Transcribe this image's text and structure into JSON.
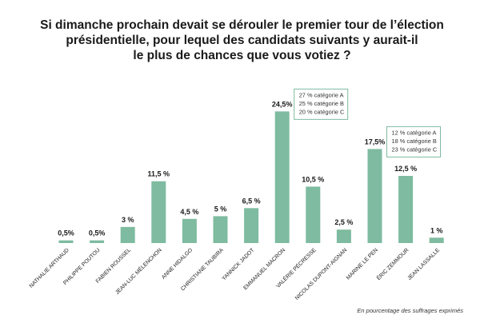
{
  "title_lines": [
    "Si dimanche prochain devait se dérouler le premier tour de l’élection",
    "présidentielle, pour lequel des candidats suivants y aurait-il",
    "le plus de chances que vous votiez ?"
  ],
  "footnote": "En pourcentage des suffrages exprimés",
  "colors": {
    "bar": "#7ebba0",
    "box_border": "#7ebba0"
  },
  "chart_data": {
    "type": "bar",
    "title": "Si dimanche prochain devait se dérouler le premier tour de l’élection présidentielle, pour lequel des candidats suivants y aurait-il le plus de chances que vous votiez ?",
    "categories": [
      "NATHALIE ARTHAUD",
      "PHILIPPE POUTOU",
      "FABIEN ROUSSEL",
      "JEAN-LUC MÉLENCHON",
      "ANNE HIDALGO",
      "CHRISTIANE TAUBIRA",
      "YANNICK JADOT",
      "EMMANUEL MACRON",
      "VALÉRIE PÉCRESSE",
      "NICOLAS DUPONT-AIGNAN",
      "MARINE LE PEN",
      "ÉRIC ZEMMOUR",
      "JEAN LASSALLE"
    ],
    "values": [
      0.5,
      0.5,
      3,
      11.5,
      4.5,
      5,
      6.5,
      24.5,
      10.5,
      2.5,
      17.5,
      12.5,
      1
    ],
    "value_labels": [
      "0,5%",
      "0,5%",
      "3 %",
      "11,5 %",
      "4,5 %",
      "5 %",
      "6,5 %",
      "24,5%",
      "10,5 %",
      "2,5 %",
      "17,5%",
      "12,5 %",
      "1 %"
    ],
    "xlabel": "",
    "ylabel": "",
    "ylim": [
      0,
      25
    ],
    "grid": false,
    "annotations": [
      {
        "category": "EMMANUEL MACRON",
        "lines": [
          "27 % catégorie A",
          "25 % catégorie B",
          "20 % catégorie C"
        ]
      },
      {
        "category": "MARINE LE PEN",
        "lines": [
          "12 % catégorie A",
          "18 % catégorie B",
          "23 % catégorie C"
        ]
      }
    ]
  }
}
